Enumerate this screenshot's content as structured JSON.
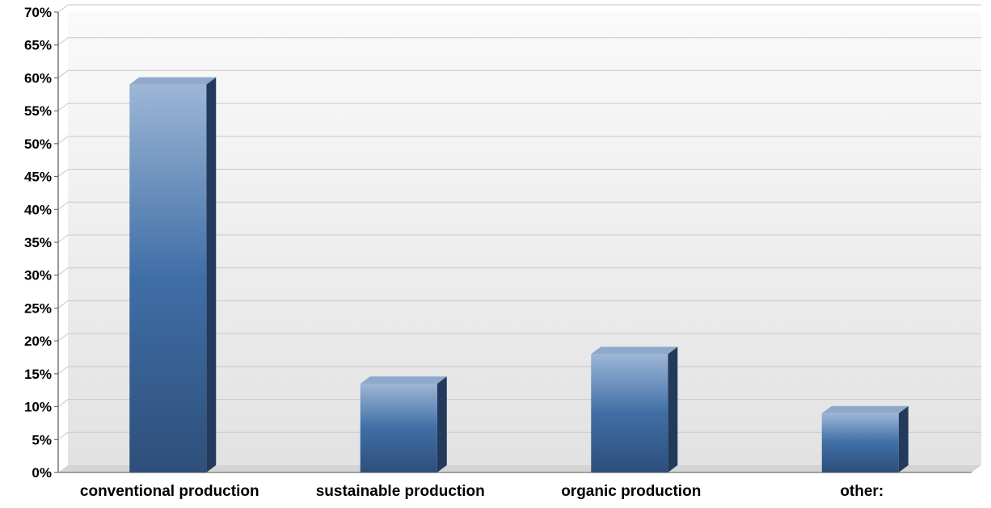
{
  "chart_data": {
    "type": "bar",
    "categories": [
      "conventional production",
      "sustainable production",
      "organic production",
      "other:"
    ],
    "values": [
      59,
      13.5,
      18,
      9
    ],
    "ylim": [
      0,
      70
    ],
    "ytick_step": 5,
    "ytick_suffix": "%",
    "grid": true,
    "legend": "none",
    "title": "",
    "xlabel": "",
    "ylabel": ""
  },
  "colors": {
    "bar_top": "#9db6d6",
    "bar_mid": "#3f6ea6",
    "bar_bottom": "#2e4f7a",
    "bar_side": "#233a5c",
    "bar_cap": "#8fa9cc",
    "gridline": "#c8c8c8",
    "plot_bg_top": "#fafafa",
    "plot_bg_bottom": "#e2e2e2"
  }
}
